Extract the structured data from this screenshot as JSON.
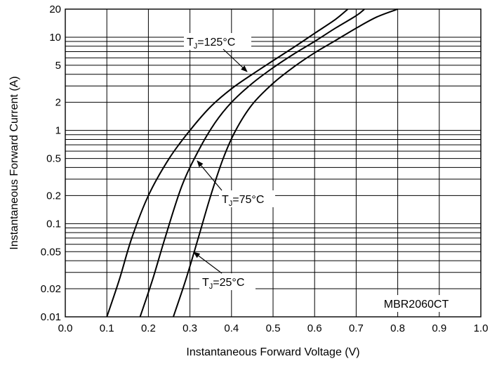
{
  "chart_data": {
    "type": "line",
    "xlabel": "Instantaneous Forward Voltage (V)",
    "ylabel": "Instantaneous Forward Current (A)",
    "xlim": [
      0.0,
      1.0
    ],
    "ylim": [
      0.01,
      20
    ],
    "yscale": "log",
    "grid": true,
    "x_ticks": [
      0.0,
      0.1,
      0.2,
      0.3,
      0.4,
      0.5,
      0.6,
      0.7,
      0.8,
      0.9,
      1.0
    ],
    "x_tick_labels": [
      "0.0",
      "0.1",
      "0.2",
      "0.3",
      "0.4",
      "0.5",
      "0.6",
      "0.7",
      "0.8",
      "0.9",
      "1.0"
    ],
    "y_ticks": [
      0.01,
      0.02,
      0.05,
      0.1,
      0.2,
      0.5,
      1,
      2,
      5,
      10,
      20
    ],
    "y_tick_labels": [
      "0.01",
      "0.02",
      "0.05",
      "0.1",
      "0.2",
      "0.5",
      "1",
      "2",
      "5",
      "10",
      "20"
    ],
    "watermark_label": "MBR2060CT",
    "series": [
      {
        "name": "TJ=125°C",
        "color": "#000000",
        "points": [
          [
            0.1,
            0.01
          ],
          [
            0.13,
            0.025
          ],
          [
            0.16,
            0.07
          ],
          [
            0.2,
            0.2
          ],
          [
            0.25,
            0.5
          ],
          [
            0.3,
            1.0
          ],
          [
            0.35,
            1.8
          ],
          [
            0.4,
            2.8
          ],
          [
            0.45,
            4.0
          ],
          [
            0.5,
            5.6
          ],
          [
            0.55,
            7.8
          ],
          [
            0.6,
            11.0
          ],
          [
            0.65,
            15.5
          ],
          [
            0.68,
            20.0
          ]
        ]
      },
      {
        "name": "TJ=75°C",
        "color": "#000000",
        "points": [
          [
            0.18,
            0.01
          ],
          [
            0.21,
            0.025
          ],
          [
            0.24,
            0.07
          ],
          [
            0.28,
            0.25
          ],
          [
            0.32,
            0.6
          ],
          [
            0.36,
            1.2
          ],
          [
            0.4,
            2.0
          ],
          [
            0.45,
            3.2
          ],
          [
            0.5,
            4.7
          ],
          [
            0.55,
            6.6
          ],
          [
            0.6,
            9.0
          ],
          [
            0.65,
            12.5
          ],
          [
            0.7,
            17.0
          ],
          [
            0.72,
            20.0
          ]
        ]
      },
      {
        "name": "TJ=25°C",
        "color": "#000000",
        "points": [
          [
            0.26,
            0.01
          ],
          [
            0.29,
            0.025
          ],
          [
            0.32,
            0.07
          ],
          [
            0.35,
            0.2
          ],
          [
            0.38,
            0.5
          ],
          [
            0.41,
            1.0
          ],
          [
            0.45,
            1.9
          ],
          [
            0.5,
            3.2
          ],
          [
            0.55,
            4.8
          ],
          [
            0.6,
            6.8
          ],
          [
            0.65,
            9.2
          ],
          [
            0.7,
            12.5
          ],
          [
            0.75,
            16.5
          ],
          [
            0.8,
            20.0
          ]
        ]
      }
    ],
    "annotations": [
      {
        "main": "T",
        "sub": "J",
        "rest": "=125°C",
        "series": 0
      },
      {
        "main": "T",
        "sub": "J",
        "rest": "=75°C",
        "series": 1
      },
      {
        "main": "T",
        "sub": "J",
        "rest": "=25°C",
        "series": 2
      }
    ]
  }
}
